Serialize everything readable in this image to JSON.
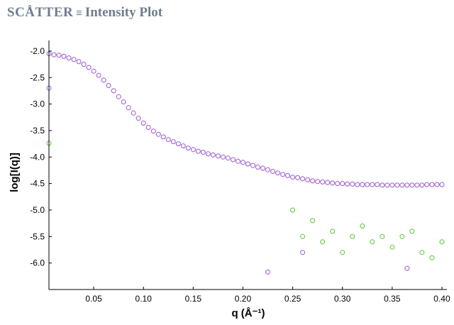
{
  "header": {
    "brand": "SCÅTTER",
    "separator": "≡",
    "title": "Intensity Plot"
  },
  "colors": {
    "series_primary": "#9b59d0",
    "series_secondary": "#55c832",
    "series_outline": "#7f7f7f",
    "title": "#6f7d8c"
  },
  "chart_data": {
    "type": "scatter",
    "title": "",
    "xlabel": "q (Å⁻¹)",
    "ylabel": "log[I(q)]",
    "xlim": [
      0.005,
      0.405
    ],
    "ylim": [
      -6.5,
      -1.8
    ],
    "xticks": [
      0.05,
      0.1,
      0.15,
      0.2,
      0.25,
      0.3,
      0.35,
      0.4
    ],
    "xtick_labels": [
      "0.05",
      "0.10",
      "0.15",
      "0.20",
      "0.25",
      "0.30",
      "0.35",
      "0.40"
    ],
    "yticks": [
      -2.0,
      -2.5,
      -3.0,
      -3.5,
      -4.0,
      -4.5,
      -5.0,
      -5.5,
      -6.0
    ],
    "ytick_labels": [
      "-2.0",
      "-2.5",
      "-3.0",
      "-3.5",
      "-4.0",
      "-4.5",
      "-5.0",
      "-5.5",
      "-6.0"
    ],
    "grid": false,
    "marker": "open-circle",
    "series": [
      {
        "color": "#9b59d0",
        "x": [
          0.005,
          0.01,
          0.015,
          0.02,
          0.025,
          0.03,
          0.035,
          0.04,
          0.045,
          0.05,
          0.055,
          0.06,
          0.065,
          0.07,
          0.075,
          0.08,
          0.085,
          0.09,
          0.095,
          0.1,
          0.105,
          0.11,
          0.115,
          0.12,
          0.125,
          0.13,
          0.135,
          0.14,
          0.145,
          0.15,
          0.155,
          0.16,
          0.165,
          0.17,
          0.175,
          0.18,
          0.185,
          0.19,
          0.195,
          0.2,
          0.205,
          0.21,
          0.215,
          0.22,
          0.225,
          0.23,
          0.235,
          0.24,
          0.245,
          0.25,
          0.255,
          0.26,
          0.265,
          0.27,
          0.275,
          0.28,
          0.285,
          0.29,
          0.295,
          0.3,
          0.305,
          0.31,
          0.315,
          0.32,
          0.325,
          0.33,
          0.335,
          0.34,
          0.345,
          0.35,
          0.355,
          0.36,
          0.365,
          0.37,
          0.375,
          0.38,
          0.385,
          0.39,
          0.395,
          0.4,
          0.005,
          0.26,
          0.225,
          0.365
        ],
        "y": [
          -2.05,
          -2.07,
          -2.08,
          -2.1,
          -2.13,
          -2.16,
          -2.2,
          -2.25,
          -2.31,
          -2.38,
          -2.46,
          -2.55,
          -2.65,
          -2.75,
          -2.86,
          -2.96,
          -3.07,
          -3.17,
          -3.27,
          -3.36,
          -3.44,
          -3.51,
          -3.57,
          -3.62,
          -3.67,
          -3.71,
          -3.75,
          -3.79,
          -3.83,
          -3.86,
          -3.89,
          -3.91,
          -3.94,
          -3.96,
          -3.98,
          -4.0,
          -4.02,
          -4.05,
          -4.08,
          -4.1,
          -4.13,
          -4.16,
          -4.19,
          -4.21,
          -4.24,
          -4.27,
          -4.3,
          -4.33,
          -4.35,
          -4.38,
          -4.39,
          -4.41,
          -4.43,
          -4.45,
          -4.46,
          -4.47,
          -4.48,
          -4.49,
          -4.5,
          -4.5,
          -4.51,
          -4.51,
          -4.52,
          -4.52,
          -4.52,
          -4.52,
          -4.52,
          -4.53,
          -4.53,
          -4.53,
          -4.53,
          -4.53,
          -4.53,
          -4.53,
          -4.53,
          -4.53,
          -4.52,
          -4.52,
          -4.52,
          -4.52,
          -2.7,
          -5.8,
          -6.17,
          -6.1
        ]
      },
      {
        "color": "#55c832",
        "x": [
          0.005,
          0.25,
          0.26,
          0.27,
          0.28,
          0.29,
          0.3,
          0.31,
          0.32,
          0.33,
          0.34,
          0.35,
          0.36,
          0.37,
          0.38,
          0.39,
          0.4
        ],
        "y": [
          -3.74,
          -5.0,
          -5.5,
          -5.2,
          -5.6,
          -5.4,
          -5.8,
          -5.5,
          -5.3,
          -5.6,
          -5.5,
          -5.7,
          -5.5,
          -5.4,
          -5.8,
          -5.9,
          -5.6
        ]
      }
    ]
  }
}
